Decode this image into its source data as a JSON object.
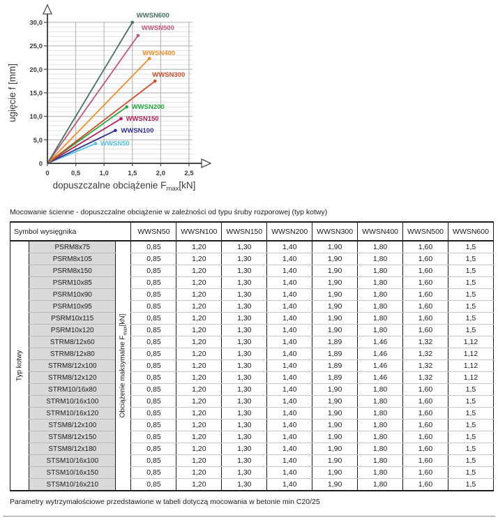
{
  "captions": {
    "top": "Mocowanie ścienne - dopuszczalne obciążenie w zależności od typu śruby rozporowej (typ kotwy)",
    "bottom": "Parametry wytrzymałościowe przedstawione w tabeli dotyczą mocowania w betonie min C20/25"
  },
  "chart_data": {
    "type": "line",
    "title": "",
    "xlabel": {
      "pre": "dopuszczalne obciążenie F",
      "sub": "max",
      "post": "[kN]"
    },
    "ylabel": "ugięcie f [mm]",
    "xlim": [
      0,
      2.5
    ],
    "ylim": [
      0,
      30
    ],
    "grid": {
      "x_step": 0.5,
      "y_minor_step": 1,
      "y_major_step": 5,
      "on": true
    },
    "x_ticks": [
      {
        "v": 0,
        "label": "0"
      },
      {
        "v": 0.5,
        "label": "0,5"
      },
      {
        "v": 1,
        "label": "1,0"
      },
      {
        "v": 1.5,
        "label": "1,5"
      },
      {
        "v": 2,
        "label": "2,0"
      },
      {
        "v": 2.5,
        "label": "2,5"
      }
    ],
    "y_ticks": [
      {
        "v": 0,
        "label": "0"
      },
      {
        "v": 5,
        "label": "5,0"
      },
      {
        "v": 10,
        "label": "10,0"
      },
      {
        "v": 15,
        "label": "15,0"
      },
      {
        "v": 20,
        "label": "20,0"
      },
      {
        "v": 25,
        "label": "25,0"
      },
      {
        "v": 30,
        "label": "30,0"
      }
    ],
    "series": [
      {
        "name": "WWSN50",
        "color": "#55BEE6",
        "x": [
          0,
          0.85
        ],
        "y": [
          0,
          4.2
        ],
        "label_dx": 7,
        "label_dy": 3
      },
      {
        "name": "WWSN100",
        "color": "#2D3192",
        "x": [
          0,
          1.2
        ],
        "y": [
          0,
          7.0
        ],
        "label_dx": 8,
        "label_dy": 3
      },
      {
        "name": "WWSN150",
        "color": "#B01E57",
        "x": [
          0,
          1.3
        ],
        "y": [
          0,
          9.5
        ],
        "label_dx": 7,
        "label_dy": 3
      },
      {
        "name": "WWSN200",
        "color": "#1FA83C",
        "x": [
          0,
          1.4
        ],
        "y": [
          0,
          12.0
        ],
        "label_dx": 7,
        "label_dy": 3
      },
      {
        "name": "WWSN300",
        "color": "#D04A26",
        "x": [
          0,
          1.9
        ],
        "y": [
          0,
          17.5
        ],
        "label_dx": -4,
        "label_dy": -6
      },
      {
        "name": "WWSN400",
        "color": "#F08C28",
        "x": [
          0,
          1.8
        ],
        "y": [
          0,
          22.3
        ],
        "label_dx": -10,
        "label_dy": -5
      },
      {
        "name": "WWSN500",
        "color": "#C25575",
        "x": [
          0,
          1.6
        ],
        "y": [
          0,
          27.2
        ],
        "label_dx": 5,
        "label_dy": -8
      },
      {
        "name": "WWSN600",
        "color": "#476F62",
        "x": [
          0,
          1.5
        ],
        "y": [
          0,
          30.0
        ],
        "label_dx": 6,
        "label_dy": -7
      }
    ]
  },
  "table": {
    "corner_header": "Symbol wysięgnika",
    "col_headers": [
      "WWSN50",
      "WWSN100",
      "WWSN150",
      "WWSN200",
      "WWSN300",
      "WWSN400",
      "WWSN500",
      "WWSN600"
    ],
    "row_group_label": "Typ kotwy",
    "load_label": {
      "pre": "Obciążenie maksymalne F",
      "sub": "max",
      "post": "[kN]"
    },
    "rows": [
      {
        "label": "PSRM8x75",
        "values": [
          "0,85",
          "1,20",
          "1,30",
          "1,40",
          "1,90",
          "1,80",
          "1,60",
          "1,5"
        ]
      },
      {
        "label": "PSRM8x105",
        "values": [
          "0,85",
          "1,20",
          "1,30",
          "1,40",
          "1,90",
          "1,80",
          "1,60",
          "1,5"
        ]
      },
      {
        "label": "PSRM8x150",
        "values": [
          "0,85",
          "1,20",
          "1,30",
          "1,40",
          "1,90",
          "1,80",
          "1,60",
          "1,5"
        ]
      },
      {
        "label": "PSRM10x85",
        "values": [
          "0,85",
          "1,20",
          "1,30",
          "1,40",
          "1,90",
          "1,80",
          "1,60",
          "1,5"
        ]
      },
      {
        "label": "PSRM10x90",
        "values": [
          "0,85",
          "1,20",
          "1,30",
          "1,40",
          "1,90",
          "1,80",
          "1,60",
          "1,5"
        ]
      },
      {
        "label": "PSRM10x95",
        "values": [
          "0,85",
          "1,20",
          "1,30",
          "1,40",
          "1,90",
          "1,80",
          "1,60",
          "1,5"
        ]
      },
      {
        "label": "PSRM10x115",
        "values": [
          "0,85",
          "1,20",
          "1,30",
          "1,40",
          "1,90",
          "1,80",
          "1,60",
          "1,5"
        ]
      },
      {
        "label": "PSRM10x120",
        "values": [
          "0,85",
          "1,20",
          "1,30",
          "1,40",
          "1,90",
          "1,80",
          "1,60",
          "1,5"
        ]
      },
      {
        "label": "STRM8/12x60",
        "values": [
          "0,85",
          "1,20",
          "1,30",
          "1,40",
          "1,89",
          "1,46",
          "1,32",
          "1,12"
        ]
      },
      {
        "label": "STRM8/12x80",
        "values": [
          "0,85",
          "1,20",
          "1,30",
          "1,40",
          "1,89",
          "1,46",
          "1,32",
          "1,12"
        ]
      },
      {
        "label": "STRM8/12x100",
        "values": [
          "0,85",
          "1,20",
          "1,30",
          "1,40",
          "1,89",
          "1,46",
          "1,32",
          "1,12"
        ]
      },
      {
        "label": "STRM8/12x120",
        "values": [
          "0,85",
          "1,20",
          "1,30",
          "1,40",
          "1,89",
          "1,46",
          "1,32",
          "1,12"
        ]
      },
      {
        "label": "STRM10/16x80",
        "values": [
          "0,85",
          "1,20",
          "1,30",
          "1,40",
          "1,90",
          "1,80",
          "1,60",
          "1,5"
        ]
      },
      {
        "label": "STRM10/16x100",
        "values": [
          "0,85",
          "1,20",
          "1,30",
          "1,40",
          "1,90",
          "1,80",
          "1,60",
          "1,5"
        ]
      },
      {
        "label": "STRM10/16x120",
        "values": [
          "0,85",
          "1,20",
          "1,30",
          "1,40",
          "1,90",
          "1,80",
          "1,60",
          "1,5"
        ]
      },
      {
        "label": "STSM8/12x100",
        "values": [
          "0,85",
          "1,20",
          "1,30",
          "1,40",
          "1,90",
          "1,80",
          "1,60",
          "1,5"
        ]
      },
      {
        "label": "STSM8/12x150",
        "values": [
          "0,85",
          "1,20",
          "1,30",
          "1,40",
          "1,90",
          "1,80",
          "1,60",
          "1,5"
        ]
      },
      {
        "label": "STSM8/12x180",
        "values": [
          "0,85",
          "1,20",
          "1,30",
          "1,40",
          "1,90",
          "1,80",
          "1,60",
          "1,5"
        ]
      },
      {
        "label": "STSM10/16x100",
        "values": [
          "0,85",
          "1,20",
          "1,30",
          "1,40",
          "1,90",
          "1,80",
          "1,60",
          "1,5"
        ]
      },
      {
        "label": "STSM10/16x150",
        "values": [
          "0,85",
          "1,20",
          "1,30",
          "1,40",
          "1,90",
          "1,80",
          "1,60",
          "1,5"
        ]
      },
      {
        "label": "STSM10/16x210",
        "values": [
          "0,85",
          "1,20",
          "1,30",
          "1,40",
          "1,90",
          "1,80",
          "1,60",
          "1,5"
        ]
      }
    ]
  }
}
